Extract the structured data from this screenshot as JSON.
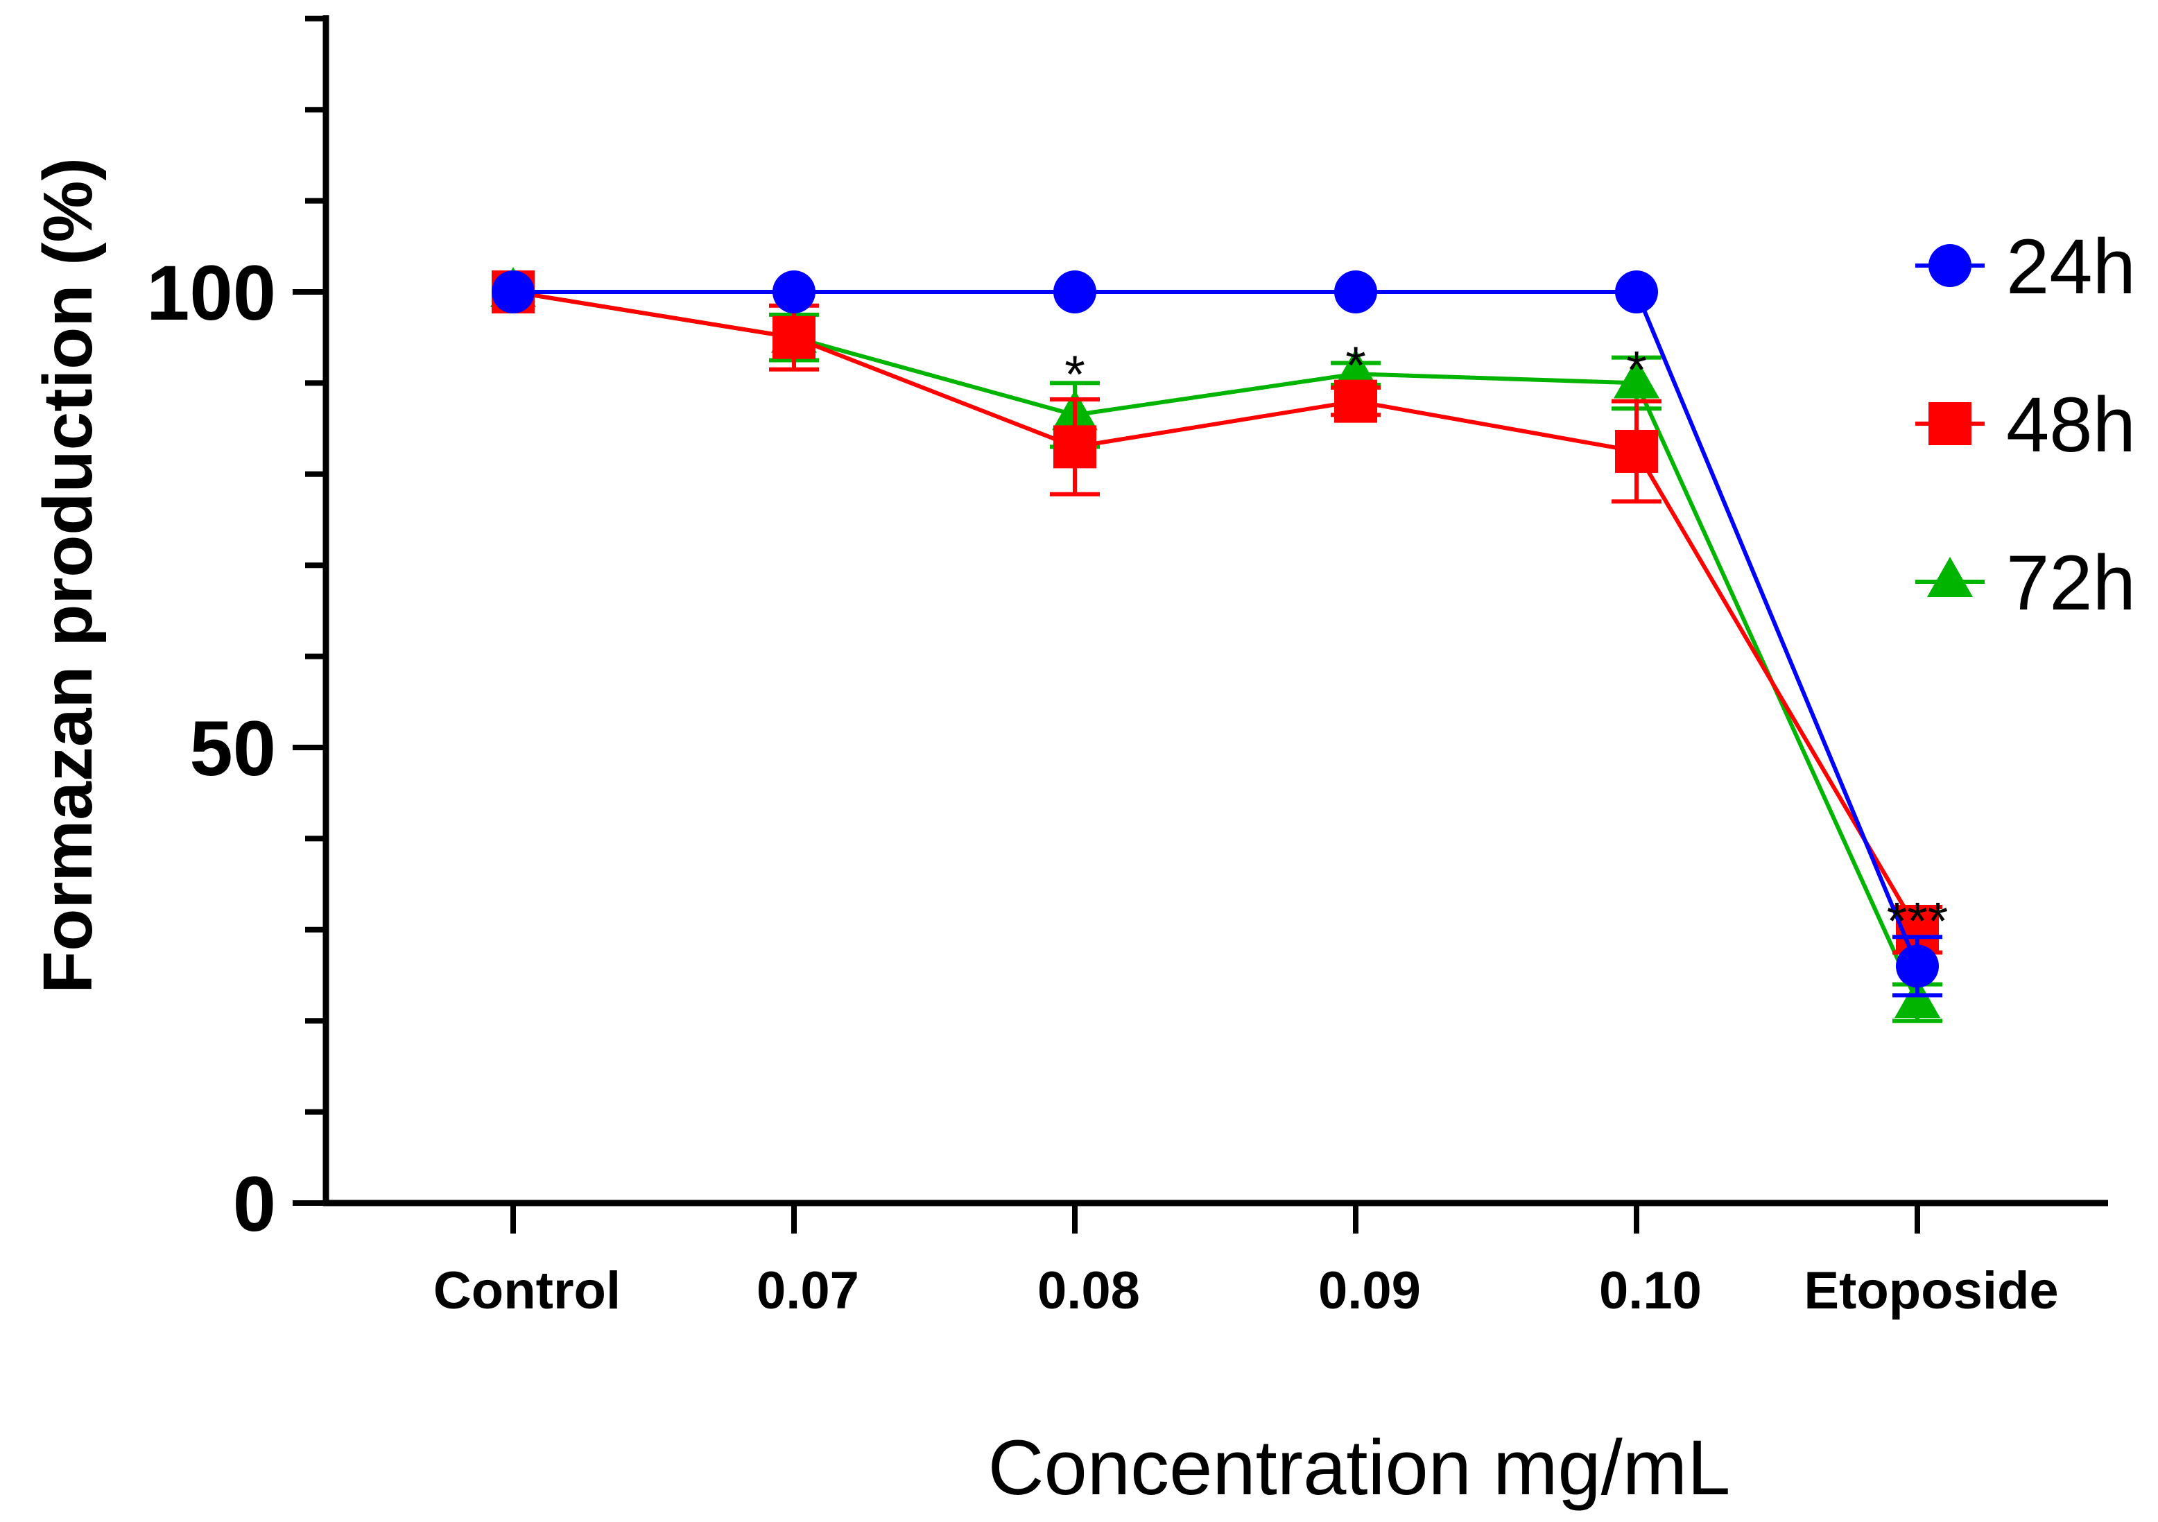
{
  "chart_data": {
    "type": "line",
    "title": "",
    "xlabel": "Concentration mg/mL",
    "ylabel": "Formazan production (%)",
    "categories": [
      "Control",
      "0.07",
      "0.08",
      "0.09",
      "0.10",
      "Etoposide"
    ],
    "ylim": [
      0,
      130
    ],
    "yticks": [
      0,
      50,
      100
    ],
    "minor_tick_step": 10,
    "grid": false,
    "legend_position": "right",
    "series": [
      {
        "name": "24h",
        "color": "#0000ff",
        "marker": "circle",
        "values": [
          100,
          100,
          100,
          100,
          100,
          26
        ],
        "errors": [
          0,
          0,
          0,
          0,
          0,
          3.2
        ]
      },
      {
        "name": "48h",
        "color": "#ff0000",
        "marker": "square",
        "values": [
          100,
          95,
          83,
          88,
          82.5,
          30
        ],
        "errors": [
          0,
          3.5,
          5.2,
          1.5,
          5.5,
          2.5
        ]
      },
      {
        "name": "72h",
        "color": "#00b400",
        "marker": "triangle",
        "values": [
          100,
          95,
          86.5,
          91,
          90,
          22
        ],
        "errors": [
          0,
          2.5,
          3.5,
          1.2,
          2.8,
          2.0
        ]
      }
    ],
    "annotations": [
      {
        "category": "0.08",
        "text": "*",
        "y": 92
      },
      {
        "category": "0.09",
        "text": "*",
        "y": 93
      },
      {
        "category": "0.10",
        "text": "*",
        "y": 92.5
      },
      {
        "category": "Etoposide",
        "text": "***",
        "y": 32
      }
    ]
  }
}
